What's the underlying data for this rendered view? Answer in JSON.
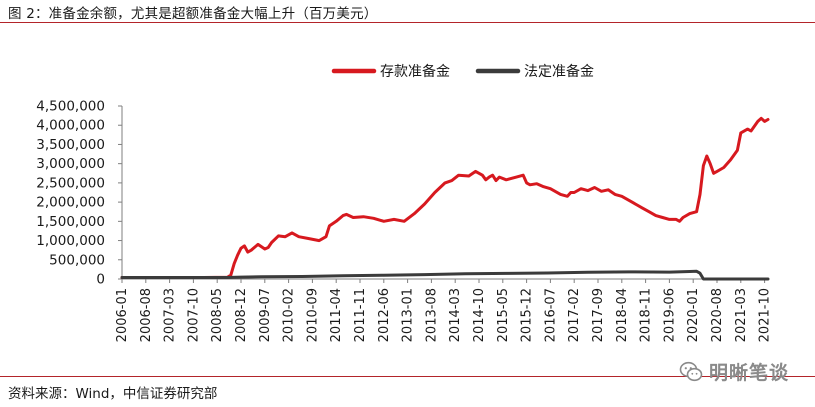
{
  "page": {
    "title": "图 2：准备金余额，尤其是超额准备金大幅上升（百万美元）",
    "source": "资料来源：Wind，中信证券研究部",
    "watermark": "明晰笔谈",
    "watermark_icon": "wechat-icon"
  },
  "colors": {
    "accent_rule": "#b3242a",
    "series_total": "#d7191f",
    "series_required": "#3b3b3b"
  },
  "chart_data": {
    "type": "line",
    "title": "准备金余额，尤其是超额准备金大幅上升（百万美元）",
    "xlabel": "",
    "ylabel": "",
    "ylim": [
      0,
      4500000
    ],
    "yticks": [
      0,
      500000,
      1000000,
      1500000,
      2000000,
      2500000,
      3000000,
      3500000,
      4000000,
      4500000
    ],
    "ytick_labels": [
      "0",
      "500,000",
      "1,000,000",
      "1,500,000",
      "2,000,000",
      "2,500,000",
      "3,000,000",
      "3,500,000",
      "4,000,000",
      "4,500,000"
    ],
    "xticks": [
      "2006-01",
      "2006-08",
      "2007-03",
      "2007-10",
      "2008-05",
      "2008-12",
      "2009-07",
      "2010-02",
      "2010-09",
      "2011-04",
      "2011-11",
      "2012-06",
      "2013-01",
      "2013-08",
      "2014-03",
      "2014-10",
      "2015-05",
      "2015-12",
      "2016-07",
      "2017-02",
      "2017-09",
      "2018-04",
      "2018-11",
      "2019-06",
      "2020-01",
      "2020-08",
      "2021-03",
      "2021-10"
    ],
    "x_range": [
      "2006-01",
      "2021-11"
    ],
    "legend": {
      "placement": "top-center"
    },
    "grid": false,
    "series": [
      {
        "name": "存款准备金",
        "color": "#d7191f",
        "points": [
          [
            "2006-01",
            40000
          ],
          [
            "2007-01",
            40000
          ],
          [
            "2008-01",
            40000
          ],
          [
            "2008-08",
            45000
          ],
          [
            "2008-09",
            100000
          ],
          [
            "2008-10",
            400000
          ],
          [
            "2008-11",
            620000
          ],
          [
            "2008-12",
            800000
          ],
          [
            "2009-01",
            860000
          ],
          [
            "2009-02",
            700000
          ],
          [
            "2009-03",
            750000
          ],
          [
            "2009-05",
            900000
          ],
          [
            "2009-07",
            780000
          ],
          [
            "2009-08",
            820000
          ],
          [
            "2009-09",
            950000
          ],
          [
            "2009-11",
            1120000
          ],
          [
            "2010-01",
            1100000
          ],
          [
            "2010-03",
            1200000
          ],
          [
            "2010-05",
            1100000
          ],
          [
            "2010-08",
            1050000
          ],
          [
            "2010-11",
            1000000
          ],
          [
            "2011-01",
            1100000
          ],
          [
            "2011-02",
            1380000
          ],
          [
            "2011-04",
            1500000
          ],
          [
            "2011-06",
            1650000
          ],
          [
            "2011-07",
            1680000
          ],
          [
            "2011-09",
            1600000
          ],
          [
            "2011-12",
            1620000
          ],
          [
            "2012-03",
            1580000
          ],
          [
            "2012-06",
            1500000
          ],
          [
            "2012-09",
            1550000
          ],
          [
            "2012-12",
            1500000
          ],
          [
            "2013-03",
            1700000
          ],
          [
            "2013-06",
            1950000
          ],
          [
            "2013-09",
            2250000
          ],
          [
            "2013-12",
            2500000
          ],
          [
            "2014-02",
            2560000
          ],
          [
            "2014-04",
            2700000
          ],
          [
            "2014-07",
            2680000
          ],
          [
            "2014-09",
            2800000
          ],
          [
            "2014-11",
            2700000
          ],
          [
            "2014-12",
            2580000
          ],
          [
            "2015-01",
            2650000
          ],
          [
            "2015-02",
            2700000
          ],
          [
            "2015-03",
            2560000
          ],
          [
            "2015-04",
            2650000
          ],
          [
            "2015-06",
            2580000
          ],
          [
            "2015-09",
            2650000
          ],
          [
            "2015-11",
            2700000
          ],
          [
            "2015-12",
            2500000
          ],
          [
            "2016-01",
            2450000
          ],
          [
            "2016-03",
            2480000
          ],
          [
            "2016-05",
            2400000
          ],
          [
            "2016-07",
            2350000
          ],
          [
            "2016-10",
            2200000
          ],
          [
            "2016-12",
            2150000
          ],
          [
            "2017-01",
            2250000
          ],
          [
            "2017-02",
            2250000
          ],
          [
            "2017-04",
            2350000
          ],
          [
            "2017-06",
            2300000
          ],
          [
            "2017-08",
            2380000
          ],
          [
            "2017-10",
            2280000
          ],
          [
            "2017-12",
            2320000
          ],
          [
            "2018-02",
            2200000
          ],
          [
            "2018-04",
            2150000
          ],
          [
            "2018-07",
            2000000
          ],
          [
            "2018-10",
            1850000
          ],
          [
            "2018-12",
            1750000
          ],
          [
            "2019-02",
            1650000
          ],
          [
            "2019-04",
            1600000
          ],
          [
            "2019-06",
            1550000
          ],
          [
            "2019-08",
            1550000
          ],
          [
            "2019-09",
            1500000
          ],
          [
            "2019-10",
            1600000
          ],
          [
            "2019-12",
            1700000
          ],
          [
            "2020-02",
            1750000
          ],
          [
            "2020-03",
            2200000
          ],
          [
            "2020-04",
            2950000
          ],
          [
            "2020-05",
            3200000
          ],
          [
            "2020-06",
            3000000
          ],
          [
            "2020-07",
            2750000
          ],
          [
            "2020-08",
            2800000
          ],
          [
            "2020-10",
            2900000
          ],
          [
            "2020-12",
            3100000
          ],
          [
            "2021-02",
            3350000
          ],
          [
            "2021-03",
            3800000
          ],
          [
            "2021-05",
            3900000
          ],
          [
            "2021-06",
            3850000
          ],
          [
            "2021-08",
            4100000
          ],
          [
            "2021-09",
            4180000
          ],
          [
            "2021-10",
            4100000
          ],
          [
            "2021-11",
            4150000
          ]
        ]
      },
      {
        "name": "法定准备金",
        "color": "#3b3b3b",
        "points": [
          [
            "2006-01",
            40000
          ],
          [
            "2007-06",
            40000
          ],
          [
            "2008-08",
            40000
          ],
          [
            "2008-12",
            50000
          ],
          [
            "2009-06",
            60000
          ],
          [
            "2010-06",
            65000
          ],
          [
            "2011-06",
            85000
          ],
          [
            "2012-06",
            100000
          ],
          [
            "2013-06",
            115000
          ],
          [
            "2014-06",
            135000
          ],
          [
            "2015-06",
            145000
          ],
          [
            "2016-06",
            155000
          ],
          [
            "2017-06",
            175000
          ],
          [
            "2018-06",
            185000
          ],
          [
            "2019-06",
            180000
          ],
          [
            "2019-12",
            195000
          ],
          [
            "2020-02",
            200000
          ],
          [
            "2020-03",
            150000
          ],
          [
            "2020-04",
            0
          ],
          [
            "2021-11",
            0
          ]
        ]
      }
    ]
  }
}
